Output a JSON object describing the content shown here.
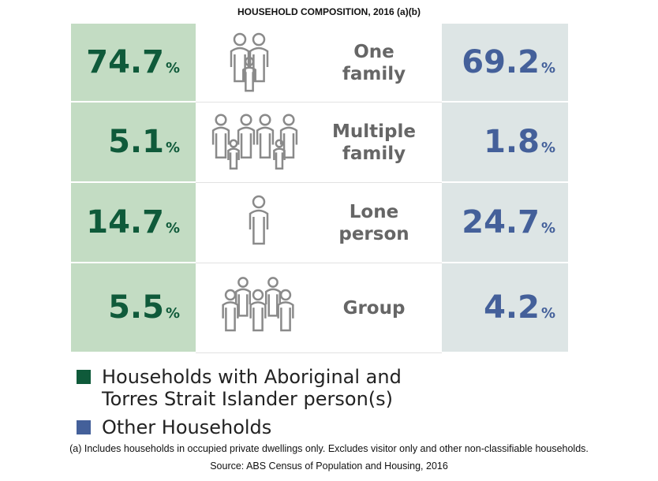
{
  "title": "HOUSEHOLD COMPOSITION, 2016 (a)(b)",
  "unit": "%",
  "rows": [
    {
      "label": "One family",
      "aboriginal": 74.7,
      "other": 69.2
    },
    {
      "label": "Multiple family",
      "aboriginal": 5.1,
      "other": 1.8
    },
    {
      "label": "Lone person",
      "aboriginal": 14.7,
      "other": 24.7
    },
    {
      "label": "Group",
      "aboriginal": 5.5,
      "other": 4.2
    }
  ],
  "legend": [
    {
      "name": "Households with Aboriginal and Torres Strait Islander person(s)",
      "color": "#0f5a3a"
    },
    {
      "name": "Other Households",
      "color": "#44609a"
    }
  ],
  "footnotes": [
    "(a) Includes households in occupied private dwellings only. Excludes visitor only and other non-classifiable households.",
    "Source: ABS Census of Population and Housing, 2016"
  ]
}
